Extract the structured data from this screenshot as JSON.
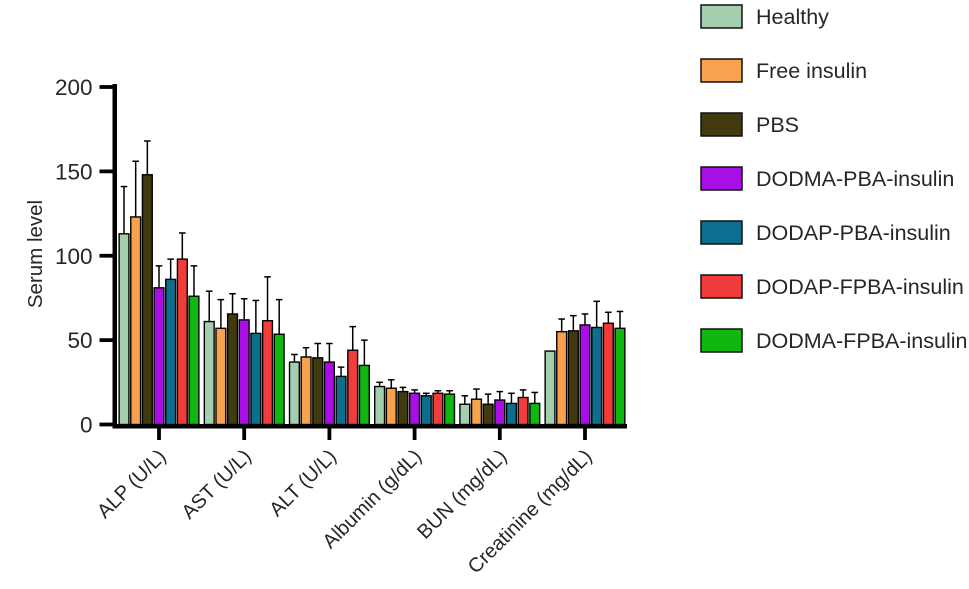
{
  "chart_data": {
    "type": "bar",
    "title": "",
    "ylabel": "Serum level",
    "xlabel": "",
    "categories": [
      "ALP (U/L)",
      "AST (U/L)",
      "ALT (U/L)",
      "Albumin (g/dL)",
      "BUN (mg/dL)",
      "Creatinine (mg/dL)"
    ],
    "series": [
      {
        "name": "Healthy",
        "color": "#a3cfae",
        "values": [
          113,
          61,
          37,
          22.5,
          12,
          43.5
        ],
        "errors": [
          28,
          18,
          4.5,
          2.5,
          5,
          0
        ]
      },
      {
        "name": "Free insulin",
        "color": "#f9a24d",
        "values": [
          123,
          57,
          40,
          21.5,
          15,
          55
        ],
        "errors": [
          33,
          17,
          5.5,
          5,
          6,
          7.5
        ]
      },
      {
        "name": "PBS",
        "color": "#413910",
        "values": [
          148,
          65.5,
          39.5,
          19.5,
          12,
          55.5
        ],
        "errors": [
          20,
          12,
          8.5,
          2.5,
          6,
          9
        ]
      },
      {
        "name": "DODMA-PBA-insulin",
        "color": "#a90ee4",
        "values": [
          81,
          62,
          37,
          18.5,
          14.5,
          59
        ],
        "errors": [
          13,
          12.5,
          11,
          2,
          5,
          6.5
        ]
      },
      {
        "name": "DODAP-PBA-insulin",
        "color": "#0d6f8f",
        "values": [
          86,
          54,
          28.5,
          17,
          12.5,
          57.5
        ],
        "errors": [
          12,
          19.5,
          5.5,
          1.5,
          6,
          15.5
        ]
      },
      {
        "name": "DODAP-FPBA-insulin",
        "color": "#f23c3c",
        "values": [
          98,
          61.5,
          44,
          18.5,
          16,
          60
        ],
        "errors": [
          15.5,
          26,
          14,
          1.5,
          4.5,
          6.5
        ]
      },
      {
        "name": "DODMA-FPBA-insulin",
        "color": "#0fb70f",
        "values": [
          76,
          53.5,
          35,
          18,
          12.5,
          57
        ],
        "errors": [
          18,
          20.5,
          15,
          2,
          6.5,
          10
        ]
      }
    ],
    "ylim": [
      0,
      200
    ],
    "yticks": [
      0,
      50,
      100,
      150,
      200
    ],
    "grid": false,
    "legend_position": "right",
    "error_bars": "upper-only",
    "axis_color": "#000000",
    "text_color": "#262626"
  }
}
